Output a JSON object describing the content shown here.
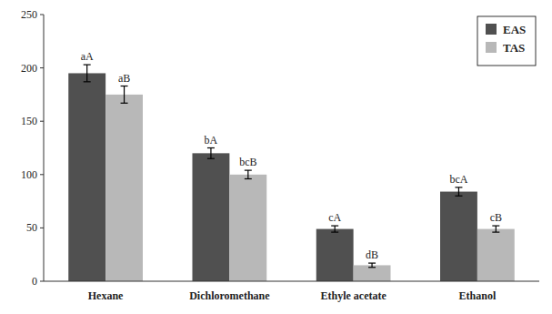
{
  "chart_data": {
    "type": "bar",
    "categories": [
      "Hexane",
      "Dichloromethane",
      "Ethyle acetate",
      "Ethanol"
    ],
    "series": [
      {
        "name": "EAS",
        "color": "#505050",
        "values": [
          195,
          120,
          49,
          84
        ],
        "errors": [
          8,
          5,
          3,
          4
        ],
        "annotations": [
          "aA",
          "bA",
          "cA",
          "bcA"
        ]
      },
      {
        "name": "TAS",
        "color": "#b8b8b8",
        "values": [
          175,
          100,
          15,
          49
        ],
        "errors": [
          8,
          4,
          2,
          3
        ],
        "annotations": [
          "aB",
          "bcB",
          "dB",
          "cB"
        ]
      }
    ],
    "ylim": [
      0,
      250
    ],
    "yticks": [
      0,
      50,
      100,
      150,
      200,
      250
    ],
    "grid": false,
    "legend": "upper right"
  }
}
